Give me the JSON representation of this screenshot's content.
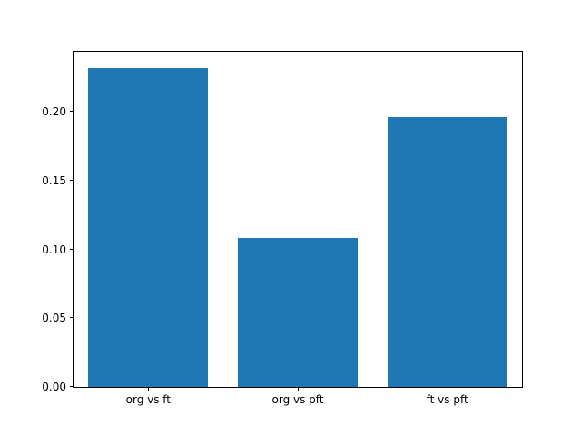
{
  "chart_data": {
    "type": "bar",
    "categories": [
      "org vs ft",
      "org vs pft",
      "ft vs pft"
    ],
    "values": [
      0.232,
      0.108,
      0.196
    ],
    "title": "",
    "xlabel": "",
    "ylabel": "",
    "ylim": [
      0,
      0.2436
    ],
    "yticks": [
      0.0,
      0.05,
      0.1,
      0.15,
      0.2
    ],
    "ytick_format_decimals": 2,
    "bar_color": "#1f77b4",
    "bar_relative_width": 0.8,
    "axis_color": "#000000",
    "background_color": "#ffffff",
    "grid": false,
    "legend": null
  }
}
